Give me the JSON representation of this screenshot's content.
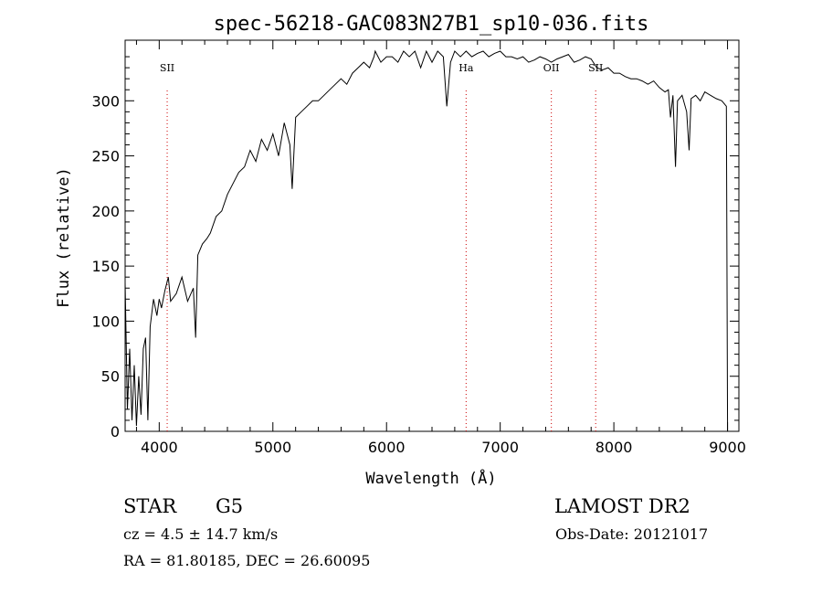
{
  "chart_data": {
    "type": "line",
    "title": "spec-56218-GAC083N27B1_sp10-036.fits",
    "xlabel": "Wavelength (Å)",
    "ylabel": "Flux (relative)",
    "xlim": [
      3700,
      9100
    ],
    "ylim": [
      0,
      350
    ],
    "xticks": [
      4000,
      5000,
      6000,
      7000,
      8000,
      9000
    ],
    "yticks": [
      0,
      50,
      100,
      150,
      200,
      250,
      300
    ],
    "grid": false,
    "series": [
      {
        "x": [
          3700,
          3720,
          3740,
          3760,
          3780,
          3800,
          3820,
          3840,
          3860,
          3880,
          3900,
          3920,
          3950,
          3980,
          4000,
          4020,
          4050,
          4080,
          4100,
          4150,
          4200,
          4250,
          4300,
          4320,
          4340,
          4380,
          4420,
          4450,
          4500,
          4550,
          4600,
          4650,
          4700,
          4750,
          4800,
          4850,
          4900,
          4950,
          5000,
          5050,
          5100,
          5150,
          5170,
          5200,
          5250,
          5300,
          5350,
          5400,
          5450,
          5500,
          5550,
          5600,
          5650,
          5700,
          5750,
          5800,
          5850,
          5890,
          5900,
          5950,
          6000,
          6050,
          6100,
          6150,
          6200,
          6250,
          6300,
          6350,
          6400,
          6450,
          6500,
          6530,
          6563,
          6600,
          6650,
          6700,
          6750,
          6800,
          6850,
          6900,
          6950,
          7000,
          7050,
          7100,
          7150,
          7200,
          7250,
          7300,
          7350,
          7400,
          7450,
          7500,
          7550,
          7600,
          7650,
          7700,
          7750,
          7800,
          7850,
          7900,
          7950,
          8000,
          8050,
          8100,
          8150,
          8200,
          8250,
          8300,
          8350,
          8400,
          8450,
          8480,
          8498,
          8520,
          8542,
          8560,
          8600,
          8640,
          8662,
          8680,
          8720,
          8760,
          8800,
          8850,
          8900,
          8950,
          8990,
          9000
        ],
        "y": [
          135,
          20,
          75,
          10,
          60,
          5,
          50,
          15,
          75,
          85,
          10,
          95,
          120,
          105,
          120,
          112,
          128,
          140,
          118,
          125,
          140,
          118,
          130,
          85,
          160,
          170,
          175,
          180,
          195,
          200,
          215,
          225,
          235,
          240,
          255,
          245,
          265,
          255,
          270,
          250,
          280,
          260,
          220,
          285,
          290,
          295,
          300,
          300,
          305,
          310,
          315,
          320,
          315,
          325,
          330,
          335,
          330,
          340,
          345,
          335,
          340,
          340,
          335,
          345,
          340,
          345,
          330,
          345,
          335,
          345,
          340,
          295,
          335,
          345,
          340,
          345,
          340,
          343,
          345,
          340,
          343,
          345,
          340,
          340,
          338,
          340,
          335,
          337,
          340,
          338,
          335,
          338,
          340,
          342,
          335,
          337,
          340,
          338,
          330,
          328,
          330,
          325,
          325,
          322,
          320,
          320,
          318,
          315,
          318,
          312,
          308,
          310,
          285,
          305,
          240,
          300,
          305,
          290,
          255,
          302,
          305,
          300,
          308,
          305,
          302,
          300,
          295,
          0
        ],
        "color": "#000000"
      }
    ],
    "annotations": [
      {
        "label": "SII",
        "x": 4070
      },
      {
        "label": "Ha",
        "x": 6700
      },
      {
        "label": "OII",
        "x": 7450
      },
      {
        "label": "SII",
        "x": 7840
      }
    ],
    "annotation_color": "#cc0000"
  },
  "info": {
    "class": "STAR",
    "subclass": "G5",
    "redshift": "cz = 4.5 ± 14.7 km/s",
    "coords": "RA =  81.80185, DEC =  26.60095",
    "survey": "LAMOST DR2",
    "obs_date": "Obs-Date: 20121017"
  }
}
